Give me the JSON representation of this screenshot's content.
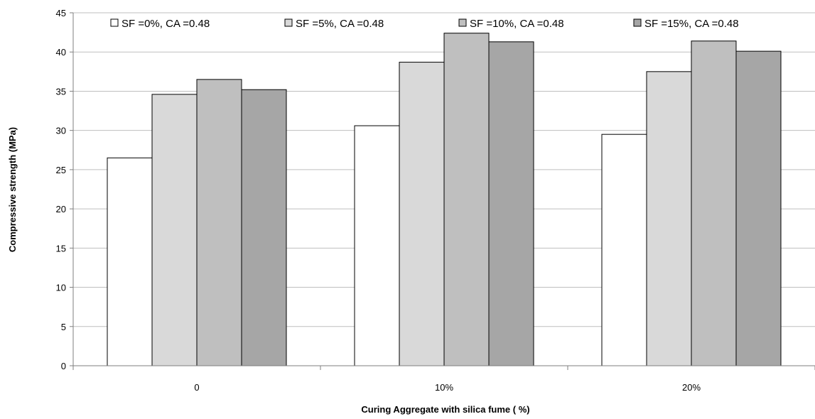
{
  "chart_data": {
    "type": "bar",
    "title": "",
    "xlabel": "Curing Aggregate with silica fume  ( %)",
    "ylabel": "Compressive strength (MPa)",
    "categories": [
      "0",
      "10%",
      "20%"
    ],
    "ylim": [
      0,
      45
    ],
    "yticks": [
      0,
      5,
      10,
      15,
      20,
      25,
      30,
      35,
      40,
      45
    ],
    "grid": true,
    "legend_position": "top",
    "series": [
      {
        "name": "SF =0%, CA =0.48",
        "values": [
          26.5,
          30.6,
          29.5
        ],
        "color": "#ffffff"
      },
      {
        "name": "SF =5%, CA =0.48",
        "values": [
          34.6,
          38.7,
          37.5
        ],
        "color": "#d9d9d9"
      },
      {
        "name": "SF =10%, CA =0.48",
        "values": [
          36.5,
          42.4,
          41.4
        ],
        "color": "#bfbfbf"
      },
      {
        "name": "SF =15%, CA =0.48",
        "values": [
          35.2,
          41.3,
          40.1
        ],
        "color": "#a6a6a6"
      }
    ]
  }
}
